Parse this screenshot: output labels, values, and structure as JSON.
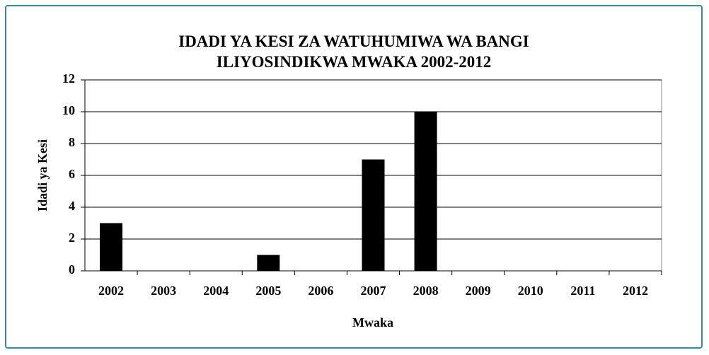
{
  "chart_data": {
    "type": "bar",
    "title": "IDADI YA KESI ZA WATUHUMIWA WA BANGI ILIYOSINDIKWA MWAKA 2002-2012",
    "x_label": "Mwaka",
    "y_label": "Idadi ya Kesi",
    "categories": [
      "2002",
      "2003",
      "2004",
      "2005",
      "2006",
      "2007",
      "2008",
      "2009",
      "2010",
      "2011",
      "2012"
    ],
    "values": [
      3,
      0,
      0,
      1,
      0,
      7,
      10,
      0,
      0,
      0,
      0
    ],
    "color": "#000000",
    "ylim": [
      0,
      12
    ],
    "yticks": [
      0,
      2,
      4,
      6,
      8,
      10,
      12
    ],
    "grid": true
  }
}
